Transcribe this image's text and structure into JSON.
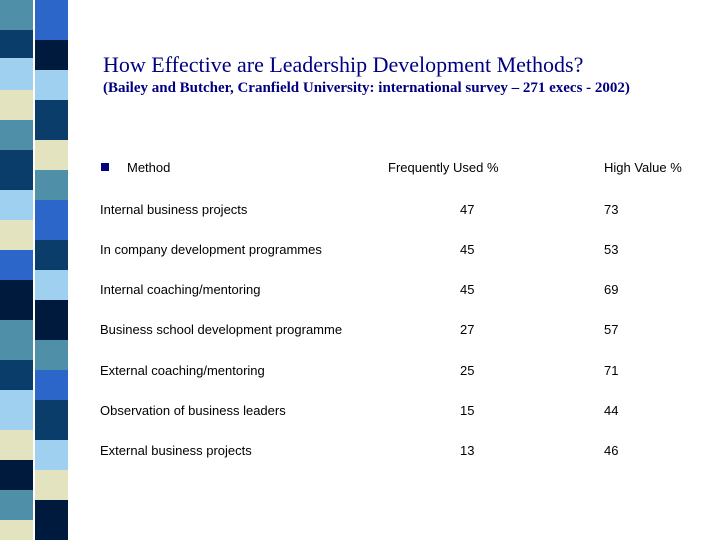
{
  "slide": {
    "title": "How Effective are Leadership Development Methods?",
    "subtitle": "(Bailey and Butcher, Cranfield University: international survey – 271 execs - 2002)"
  },
  "table": {
    "headers": [
      "Method",
      "Frequently Used %",
      "High Value %"
    ],
    "rows": [
      {
        "method": "Internal business projects",
        "frequently_used": "47",
        "high_value": "73"
      },
      {
        "method": "In company development programmes",
        "frequently_used": "45",
        "high_value": "53"
      },
      {
        "method": "Internal coaching/mentoring",
        "frequently_used": "45",
        "high_value": "69"
      },
      {
        "method": "Business school development programme",
        "frequently_used": "27",
        "high_value": "57"
      },
      {
        "method": "External coaching/mentoring",
        "frequently_used": "25",
        "high_value": "71"
      },
      {
        "method": "Observation of business leaders",
        "frequently_used": "15",
        "high_value": "44"
      },
      {
        "method": "External business projects",
        "frequently_used": "13",
        "high_value": "46"
      }
    ]
  },
  "colors": {
    "title": "#000080",
    "stripe": [
      "#4f8fa8",
      "#0b3d6b",
      "#9fd0f0",
      "#e3e3c0",
      "#001a3d",
      "#2b66c8"
    ]
  }
}
